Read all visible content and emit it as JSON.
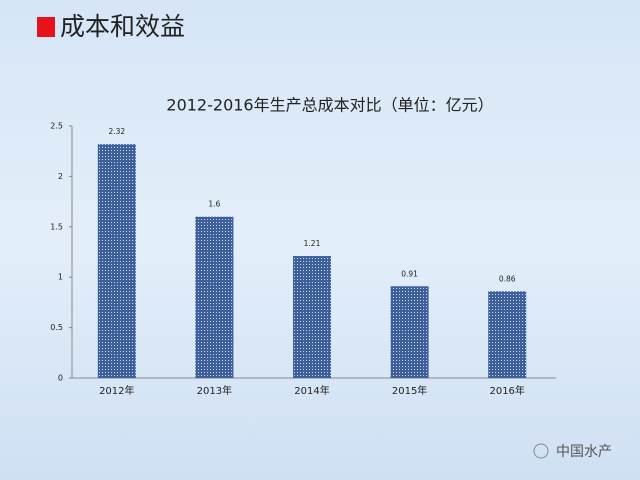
{
  "slide_title": "成本和效益",
  "watermark": "中国水产",
  "chart_data": {
    "type": "bar",
    "title": "2012-2016年生产总成本对比（单位：亿元）",
    "categories": [
      "2012年",
      "2013年",
      "2014年",
      "2015年",
      "2016年"
    ],
    "values": [
      2.32,
      1.6,
      1.21,
      0.91,
      0.86
    ],
    "color": "#3d5f9c",
    "ylim": [
      0,
      2.5
    ],
    "yticks": [
      0,
      0.5,
      1,
      1.5,
      2,
      2.5
    ],
    "grid": false
  }
}
